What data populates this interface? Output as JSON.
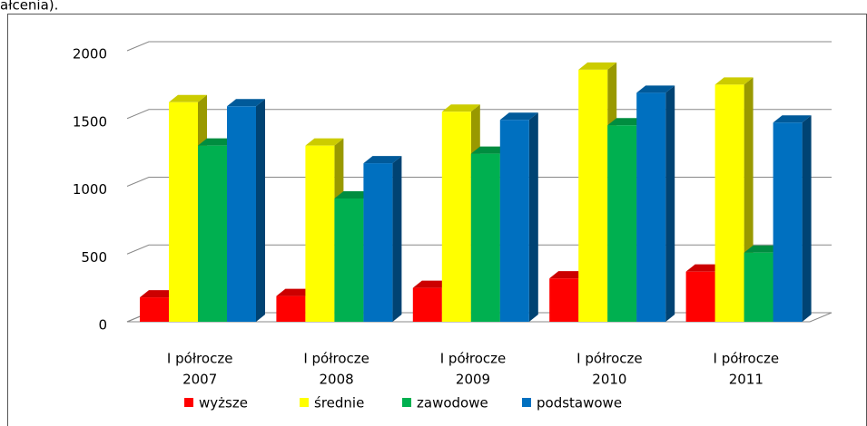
{
  "caption": "ałcenia).",
  "chart_data": {
    "type": "bar3d",
    "categories": [
      [
        "I półrocze",
        "2007"
      ],
      [
        "I półrocze",
        "2008"
      ],
      [
        "I półrocze",
        "2009"
      ],
      [
        "I półrocze",
        "2010"
      ],
      [
        "I półrocze",
        "2011"
      ]
    ],
    "series": [
      {
        "name": "wyższe",
        "color": "#ff0000",
        "values": [
          180,
          190,
          250,
          320,
          370
        ]
      },
      {
        "name": "średnie",
        "color": "#ffff00",
        "values": [
          1620,
          1300,
          1550,
          1860,
          1750
        ]
      },
      {
        "name": "zawodowe",
        "color": "#00b050",
        "values": [
          1300,
          910,
          1240,
          1450,
          510
        ]
      },
      {
        "name": "podstawowe",
        "color": "#0070c0",
        "values": [
          1590,
          1170,
          1490,
          1690,
          1470
        ]
      }
    ],
    "ylim": [
      0,
      2000
    ],
    "yticks": [
      0,
      500,
      1000,
      1500,
      2000
    ],
    "grid": true,
    "legend": "bottom"
  }
}
